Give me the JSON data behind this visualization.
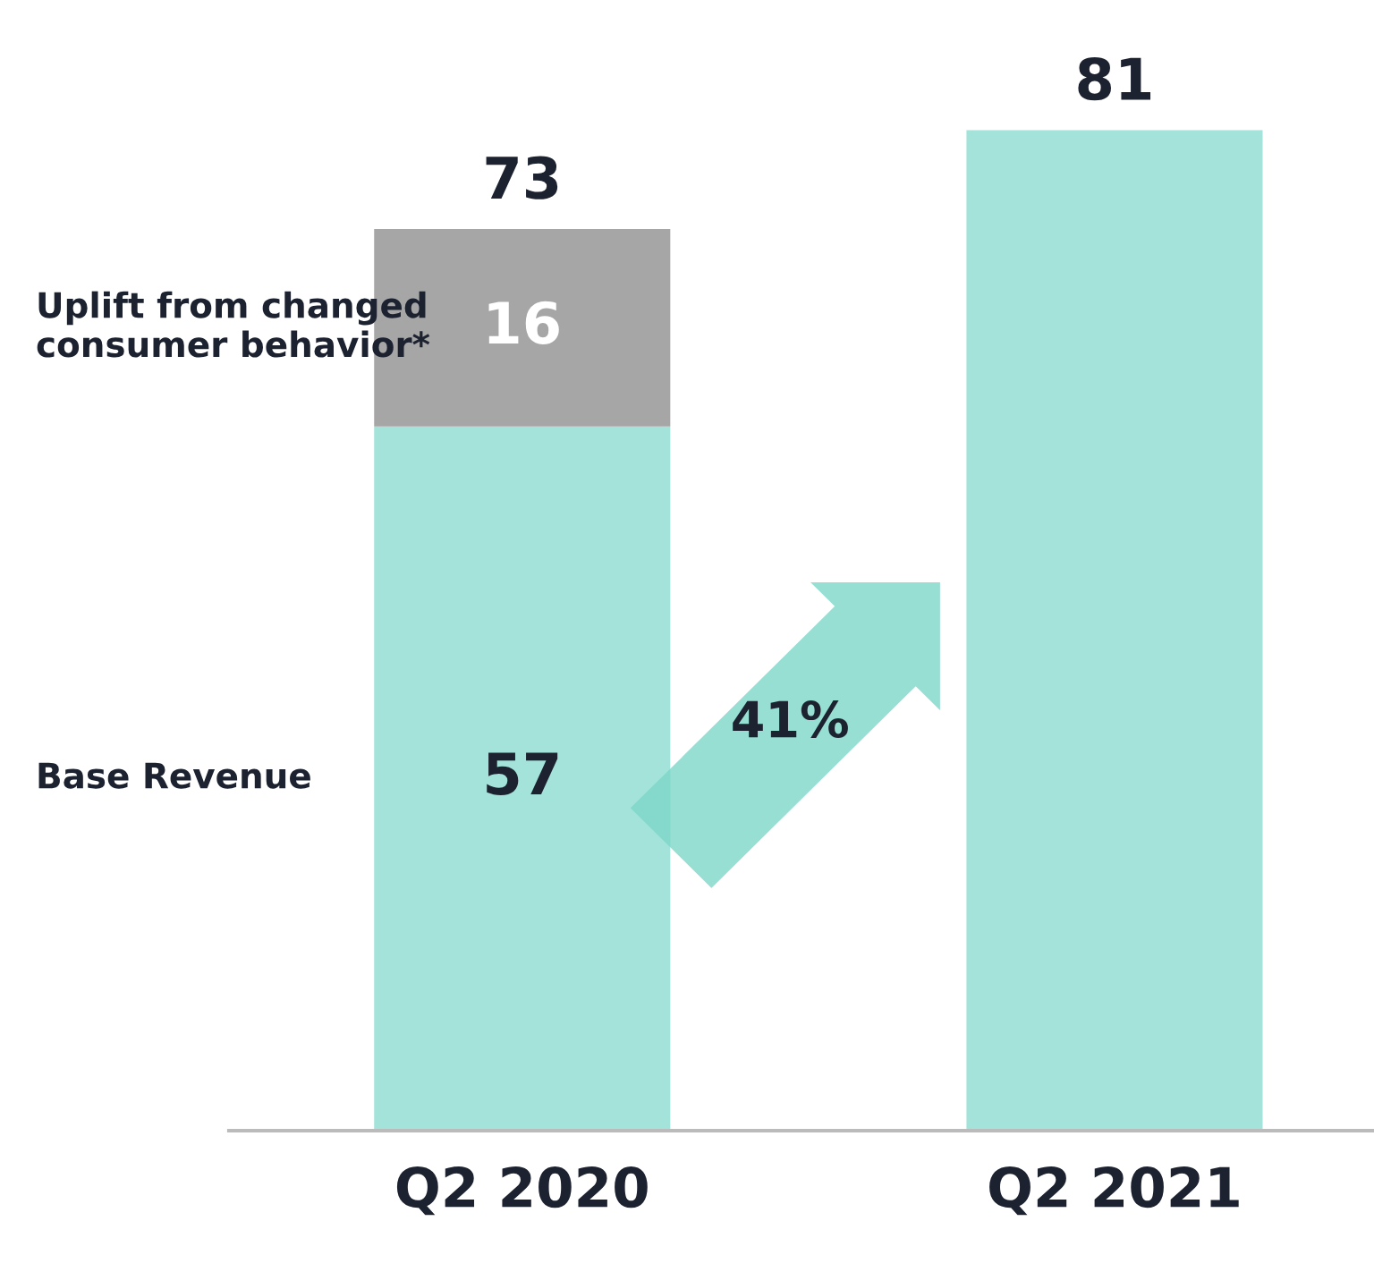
{
  "chart_data": {
    "type": "bar",
    "stacked": true,
    "categories": [
      "Q2 2020",
      "Q2 2021"
    ],
    "series": [
      {
        "name": "Base Revenue",
        "color": "#a3e3d9",
        "values": [
          57,
          81
        ],
        "value_labels": [
          "57",
          null
        ]
      },
      {
        "name": "Uplift from changed consumer behavior*",
        "color": "#a6a6a6",
        "values": [
          16,
          null
        ],
        "value_labels": [
          "16",
          null
        ]
      }
    ],
    "totals": [
      "73",
      "81"
    ],
    "tick_labels": "x",
    "grid": false,
    "annotations": [
      "41%"
    ]
  }
}
